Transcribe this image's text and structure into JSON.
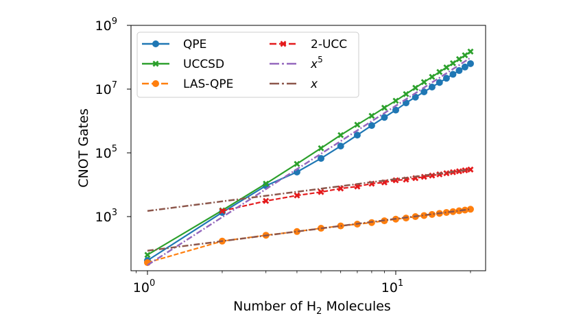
{
  "chart_data": {
    "type": "line",
    "title": "",
    "xlabel": "Number of H2 Molecules",
    "xlabel_parts": {
      "pre": "Number of H",
      "sub": "2",
      "post": " Molecules"
    },
    "ylabel": "CNOT Gates",
    "xscale": "log",
    "yscale": "log",
    "xlim": [
      0.87,
      27
    ],
    "ylim": [
      20,
      1000000000
    ],
    "grid": false,
    "legend_position": "top-left",
    "legend_columns": 2,
    "x_ticks": [
      {
        "base": "10",
        "exp": "0",
        "value": 1
      },
      {
        "base": "10",
        "exp": "1",
        "value": 10
      }
    ],
    "y_ticks": [
      {
        "base": "10",
        "exp": "3",
        "value": 1000
      },
      {
        "base": "10",
        "exp": "5",
        "value": 100000
      },
      {
        "base": "10",
        "exp": "7",
        "value": 10000000
      },
      {
        "base": "10",
        "exp": "9",
        "value": 1000000000
      }
    ],
    "series": [
      {
        "name": "QPE",
        "label": "QPE",
        "color": "#1f77b4",
        "linestyle": "solid",
        "marker": "circle",
        "x": [
          1,
          2,
          3,
          4,
          5,
          6,
          7,
          8,
          9,
          10,
          11,
          12,
          13,
          14,
          15,
          16,
          17,
          18,
          19,
          20
        ],
        "values": [
          42,
          1350,
          9300,
          25000,
          67000,
          163000,
          360000,
          720000,
          1300000,
          2200000,
          3700000,
          5600000,
          8200000,
          11600000,
          16100000,
          21900000,
          29100000,
          38200000,
          49300000,
          63000000
        ]
      },
      {
        "name": "UCCSD",
        "label": "UCCSD",
        "color": "#2ca02c",
        "linestyle": "solid",
        "marker": "x-filled",
        "x": [
          1,
          2,
          3,
          4,
          5,
          6,
          7,
          8,
          9,
          10,
          11,
          12,
          13,
          14,
          15,
          16,
          17,
          18,
          19,
          20
        ],
        "values": [
          63,
          1560,
          10800,
          45000,
          140000,
          360000,
          760000,
          1450000,
          2600000,
          4300000,
          7000000,
          11000000,
          16600000,
          24200000,
          34400000,
          47900000,
          65000000,
          87000000,
          115000000,
          150000000
        ]
      },
      {
        "name": "LAS-QPE",
        "label": "LAS-QPE",
        "color": "#ff7f0e",
        "linestyle": "dashed",
        "marker": "circle",
        "x": [
          1,
          2,
          3,
          4,
          5,
          6,
          7,
          8,
          9,
          10,
          11,
          12,
          13,
          14,
          15,
          16,
          17,
          18,
          19,
          20
        ],
        "values": [
          36,
          170,
          260,
          340,
          430,
          510,
          580,
          650,
          740,
          830,
          900,
          1000,
          1080,
          1170,
          1260,
          1350,
          1430,
          1520,
          1600,
          1700
        ]
      },
      {
        "name": "2-UCC",
        "label": "2-UCC",
        "color": "#e41a1c",
        "linestyle": "dashed",
        "marker": "x-filled",
        "x": [
          2,
          3,
          4,
          5,
          6,
          7,
          8,
          9,
          10,
          11,
          12,
          13,
          14,
          15,
          16,
          17,
          18,
          19,
          20
        ],
        "values": [
          1500,
          3100,
          4600,
          5900,
          7600,
          8800,
          10800,
          11800,
          13800,
          14500,
          16100,
          17700,
          19400,
          21200,
          22900,
          24700,
          26500,
          28300,
          30000
        ]
      },
      {
        "name": "x^5",
        "label": "x",
        "label_sup": "5",
        "color": "#9467bd",
        "linestyle": "dashdot",
        "marker": "none",
        "x": [
          1,
          2,
          3,
          4,
          5,
          6,
          7,
          8,
          9,
          10,
          11,
          12,
          13,
          14,
          15,
          16,
          17,
          18,
          19,
          20
        ],
        "values": [
          30,
          960,
          7290,
          30720,
          93750,
          233280,
          504210,
          983040,
          1771470,
          3000000,
          4831530,
          7464960,
          11138790,
          16134720,
          22781250,
          31457280,
          42595710,
          56687040,
          74285970,
          96000000
        ]
      },
      {
        "name": "x",
        "label": "x",
        "label_sup": "",
        "color": "#8c564b",
        "linestyle": "dashdot",
        "marker": "none",
        "x": [
          1,
          2,
          3,
          4,
          5,
          6,
          7,
          8,
          9,
          10,
          11,
          12,
          13,
          14,
          15,
          16,
          17,
          18,
          19,
          20
        ],
        "values": [
          1500,
          3000,
          4500,
          6000,
          7500,
          9000,
          10500,
          12000,
          13500,
          15000,
          16500,
          18000,
          19500,
          21000,
          22500,
          24000,
          25500,
          27000,
          28500,
          30000
        ]
      },
      {
        "name": "x-low",
        "label": "",
        "color": "#8c564b",
        "linestyle": "dashdot",
        "marker": "none",
        "in_legend": false,
        "x": [
          1,
          2,
          3,
          4,
          5,
          6,
          7,
          8,
          9,
          10,
          11,
          12,
          13,
          14,
          15,
          16,
          17,
          18,
          19,
          20
        ],
        "values": [
          85,
          170,
          255,
          340,
          425,
          510,
          595,
          680,
          765,
          850,
          935,
          1020,
          1105,
          1190,
          1275,
          1360,
          1445,
          1530,
          1615,
          1700
        ]
      }
    ]
  }
}
